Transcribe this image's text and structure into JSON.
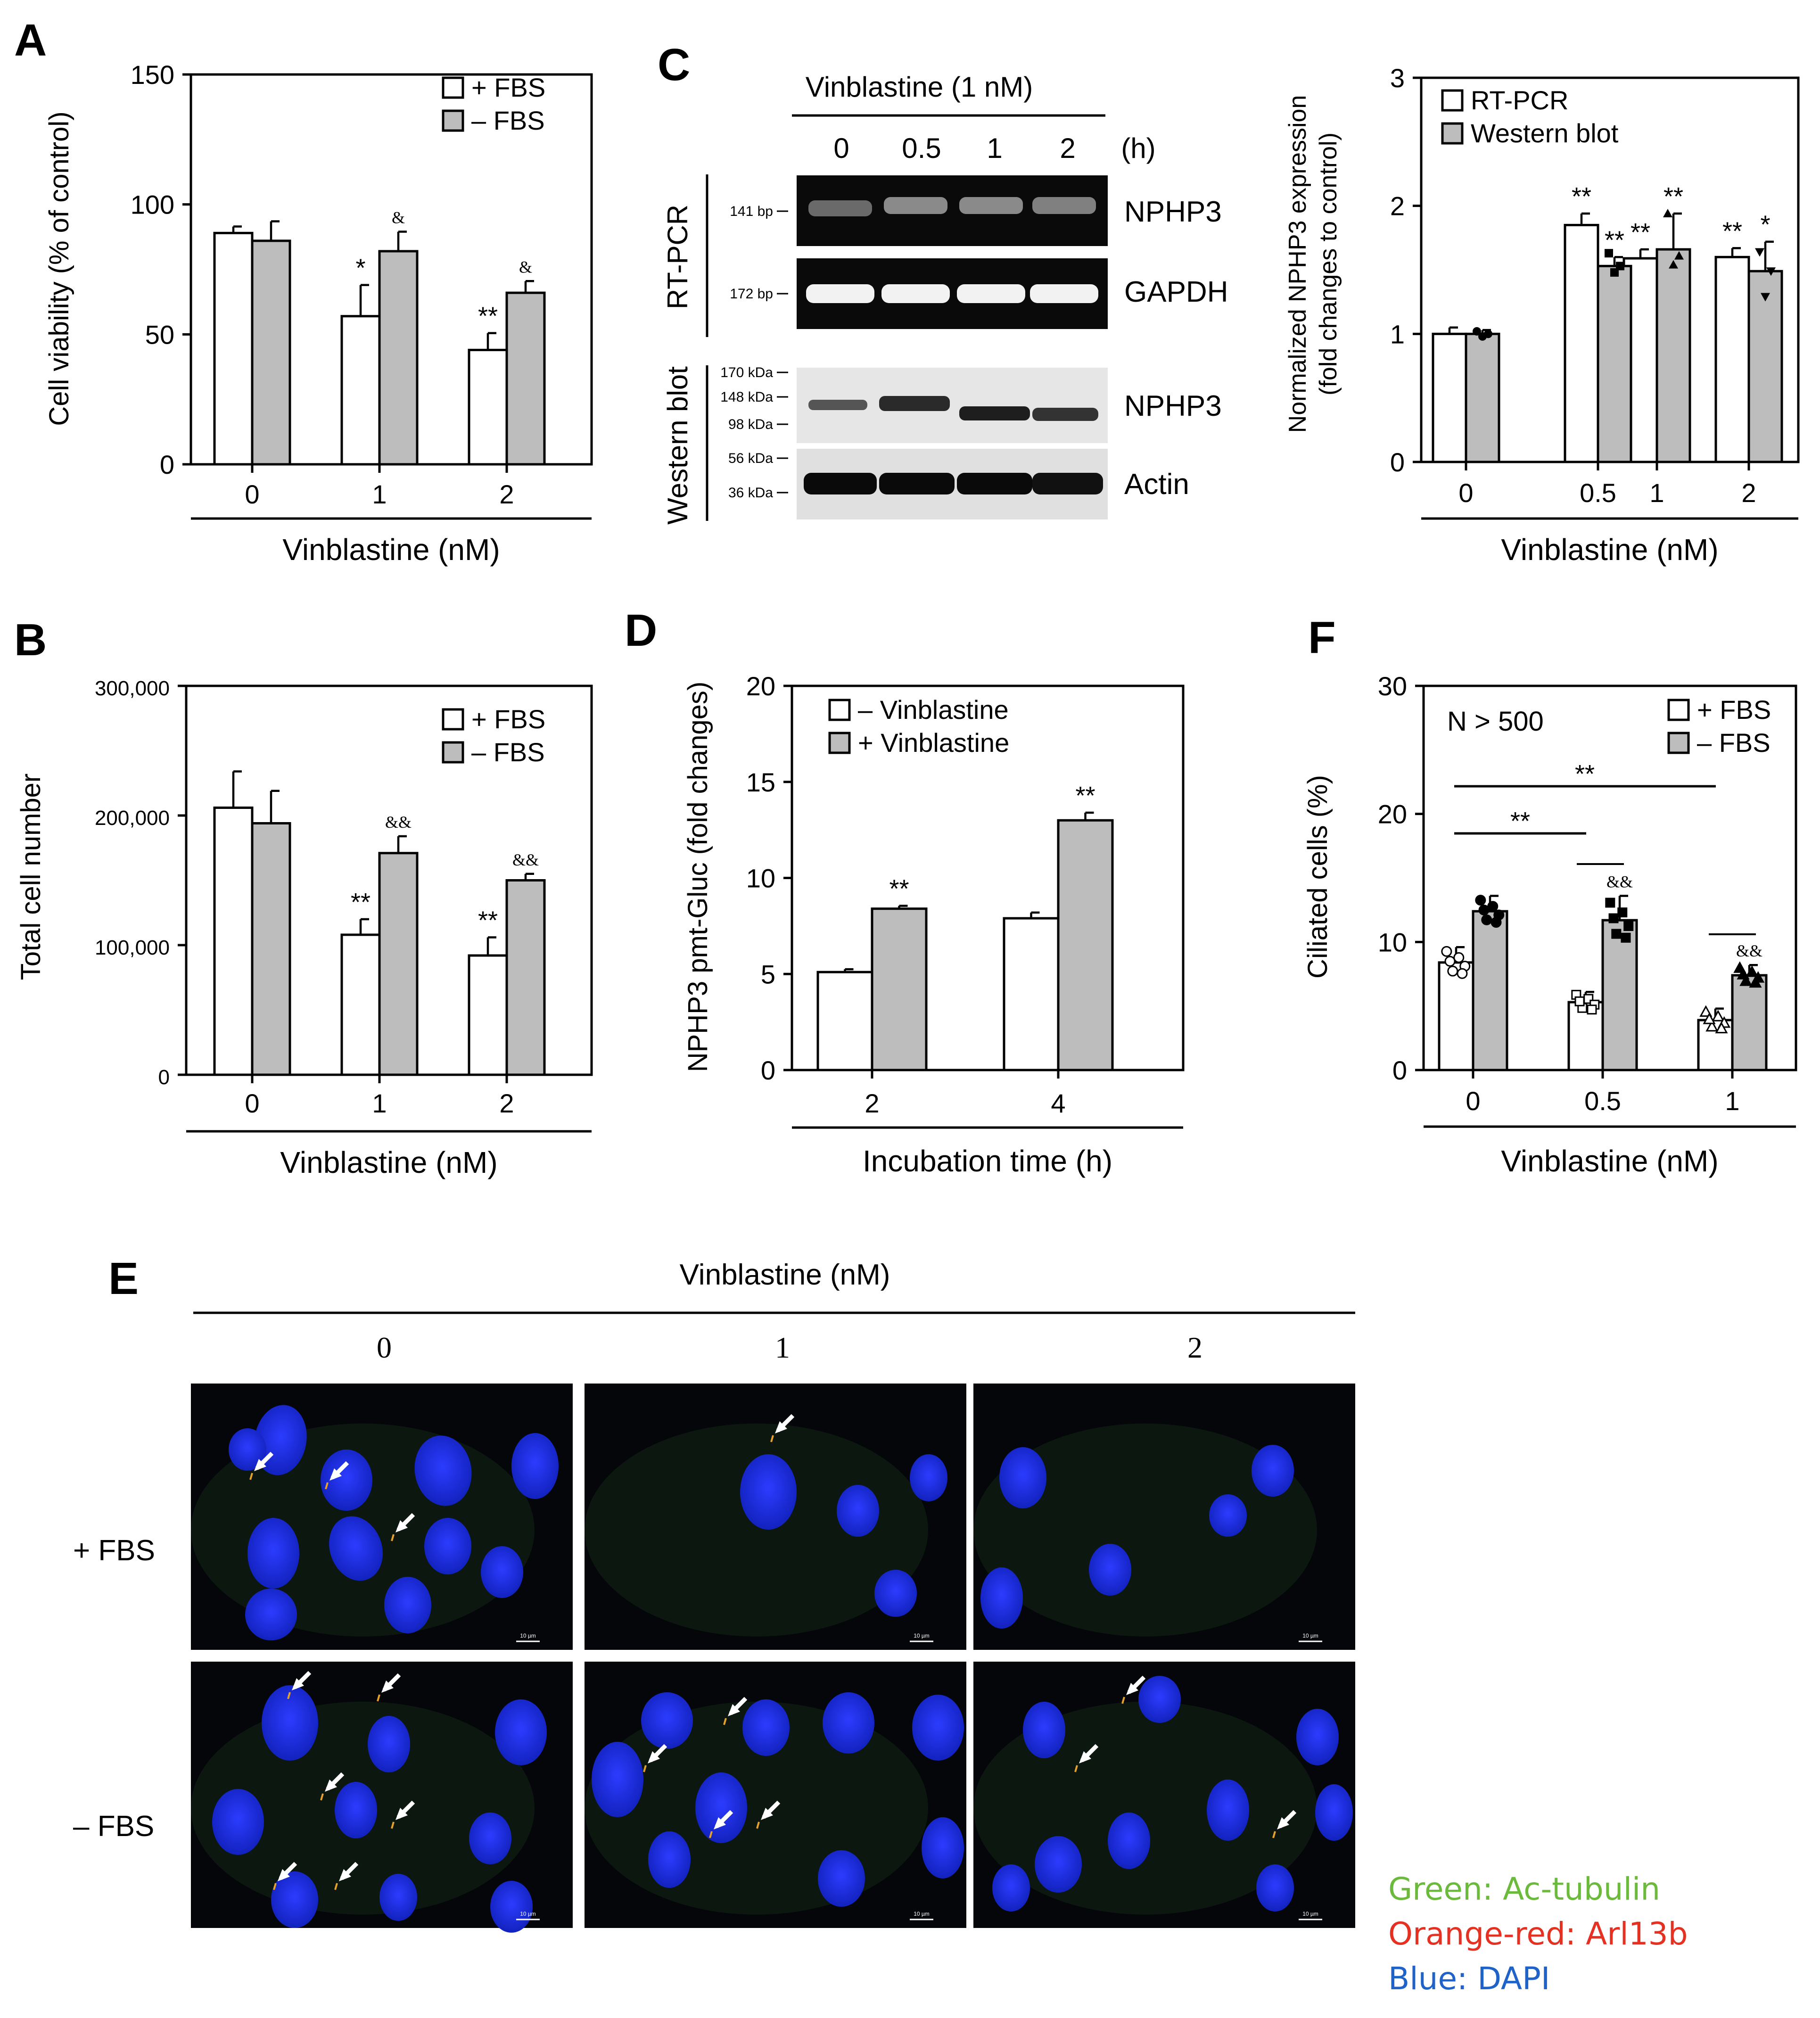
{
  "panel_letters": {
    "A": "A",
    "B": "B",
    "C": "C",
    "D": "D",
    "E": "E",
    "F": "F"
  },
  "legend_plus_fbs": "+ FBS",
  "legend_minus_fbs": "– FBS",
  "colors": {
    "white_bar": "#ffffff",
    "gray_bar": "#bdbdbd",
    "nucleus": "#1f2ee6",
    "green": "#6cba3c",
    "red": "#e53122",
    "blue": "#1f63c8"
  },
  "chart_data": [
    {
      "panel": "A",
      "type": "bar",
      "categories": [
        "0",
        "1",
        "2"
      ],
      "xlabel": "Vinblastine (nM)",
      "ylabel": "Cell viability (% of control)",
      "ylim": [
        0,
        150
      ],
      "yticks": [
        "0",
        "50",
        "100",
        "150"
      ],
      "series": [
        {
          "name": "+ FBS",
          "values": [
            89,
            57,
            44
          ],
          "errors": [
            2.5,
            12,
            6.5
          ],
          "marks": [
            "",
            "*",
            "**"
          ]
        },
        {
          "name": "– FBS",
          "values": [
            86,
            82,
            66
          ],
          "errors": [
            7.5,
            7.5,
            4.5
          ],
          "marks": [
            "",
            "&",
            "&"
          ]
        }
      ]
    },
    {
      "panel": "B",
      "type": "bar",
      "categories": [
        "0",
        "1",
        "2"
      ],
      "xlabel": "Vinblastine (nM)",
      "ylabel": "Total cell number",
      "ylim": [
        0,
        300000
      ],
      "yticks": [
        "0",
        "100,000",
        "200,000",
        "300,000"
      ],
      "series": [
        {
          "name": "+ FBS",
          "values": [
            206000,
            108000,
            92000
          ],
          "errors": [
            28000,
            12000,
            14000
          ],
          "marks": [
            "",
            "**",
            "**"
          ]
        },
        {
          "name": "– FBS",
          "values": [
            194000,
            171000,
            150000
          ],
          "errors": [
            25000,
            13000,
            5000
          ],
          "marks": [
            "",
            "&&",
            "&&"
          ]
        }
      ]
    },
    {
      "panel": "C",
      "type": "bar",
      "categories": [
        "0",
        "0.5",
        "1",
        "2"
      ],
      "xlabel": "Vinblastine (nM)",
      "ylabel": "Normalized NPHP3 expression",
      "ylabel2": "(fold changes to control)",
      "ylim": [
        0,
        3
      ],
      "yticks": [
        "0",
        "1",
        "2",
        "3"
      ],
      "series": [
        {
          "name": "RT-PCR",
          "values": [
            1.0,
            1.85,
            1.59,
            1.6
          ],
          "errors": [
            0.05,
            0.09,
            0.07,
            0.07
          ],
          "marks": [
            "",
            "**",
            "**",
            "**"
          ]
        },
        {
          "name": "Western blot",
          "values": [
            1.0,
            1.53,
            1.66,
            1.49
          ],
          "errors": [
            0.03,
            0.07,
            0.28,
            0.23
          ],
          "marks": [
            "",
            "**",
            "**",
            "*"
          ]
        }
      ]
    },
    {
      "panel": "D",
      "type": "bar",
      "categories": [
        "2",
        "4"
      ],
      "xlabel": "Incubation time (h)",
      "ylabel": "NPHP3 pmt-Gluc (fold changes)",
      "ylim": [
        0,
        20
      ],
      "yticks": [
        "0",
        "5",
        "10",
        "15",
        "20"
      ],
      "series": [
        {
          "name": "– Vinblastine",
          "values": [
            5.1,
            7.9
          ],
          "errors": [
            0.15,
            0.3
          ],
          "marks": [
            "",
            ""
          ]
        },
        {
          "name": "+ Vinblastine",
          "values": [
            8.4,
            13.0
          ],
          "errors": [
            0.15,
            0.4
          ],
          "marks": [
            "**",
            "**"
          ]
        }
      ]
    },
    {
      "panel": "F",
      "type": "bar",
      "categories": [
        "0",
        "0.5",
        "1"
      ],
      "xlabel": "Vinblastine (nM)",
      "ylabel": "Ciliated cells (%)",
      "ylim": [
        0,
        30
      ],
      "yticks": [
        "0",
        "10",
        "20",
        "30"
      ],
      "note": "N > 500",
      "series": [
        {
          "name": "+ FBS",
          "values": [
            8.4,
            5.3,
            3.9
          ],
          "errors": [
            1.2,
            0.8,
            0.9
          ],
          "marks": [
            "",
            "",
            ""
          ]
        },
        {
          "name": "– FBS",
          "values": [
            12.4,
            11.7,
            7.4
          ],
          "errors": [
            1.2,
            1.9,
            0.8
          ],
          "marks": [
            "",
            "&&",
            "&&"
          ]
        }
      ],
      "brackets": [
        "**",
        "**"
      ]
    }
  ],
  "blot": {
    "title": "Vinblastine (1 nM)",
    "times": [
      "0",
      "0.5",
      "1",
      "2"
    ],
    "time_unit": "(h)",
    "rtpcr_label": "RT-PCR",
    "western_label": "Western blot",
    "bands": [
      "NPHP3",
      "GAPDH",
      "NPHP3",
      "Actin"
    ],
    "size_labels": [
      "141 bp",
      "172 bp",
      "170 kDa",
      "148 kDa",
      "98 kDa",
      "56 kDa",
      "36 kDa"
    ]
  },
  "micro": {
    "title": "Vinblastine (nM)",
    "cols": [
      "0",
      "1",
      "2"
    ],
    "rows": [
      "+ FBS",
      "– FBS"
    ],
    "scale": "10 µm",
    "legend": [
      "Green: Ac-tubulin",
      "Orange-red: Arl13b",
      "Blue: DAPI"
    ]
  }
}
